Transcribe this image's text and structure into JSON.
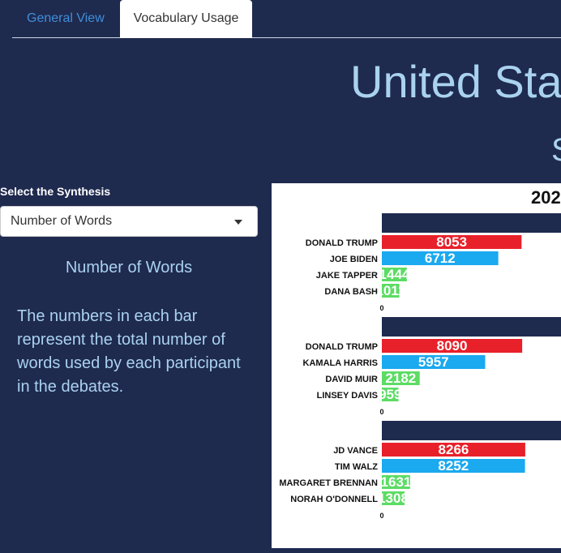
{
  "tabs": [
    {
      "label": "General View",
      "active": false
    },
    {
      "label": "Vocabulary Usage",
      "active": true
    }
  ],
  "page": {
    "title": "United Sta",
    "subtitle": "S"
  },
  "sidebar": {
    "select_label": "Select the Synthesis",
    "select_value": "Number of Words",
    "heading": "Number of Words",
    "description": "The numbers in each bar represent the total number of words used by each participant in the debates."
  },
  "colors": {
    "background": "#1f2a4f",
    "accent_text": "#a9d2ee",
    "tab_link": "#3f8fd8",
    "bar_red": "#e8202a",
    "bar_blue": "#1ba9ef",
    "bar_green": "#5cdc64",
    "panel_header": "#1f2a4f"
  },
  "chart_data": {
    "type": "bar",
    "orientation": "horizontal",
    "title": "202",
    "axis_zero_label": "0",
    "panels": [
      {
        "categories": [
          "DONALD TRUMP",
          "JOE BIDEN",
          "JAKE TAPPER",
          "DANA BASH"
        ],
        "values": [
          8053,
          6712,
          1444,
          1011
        ],
        "colors": [
          "red",
          "blue",
          "green",
          "green"
        ]
      },
      {
        "categories": [
          "DONALD TRUMP",
          "KAMALA HARRIS",
          "DAVID MUIR",
          "LINSEY DAVIS"
        ],
        "values": [
          8090,
          5957,
          2182,
          959
        ],
        "colors": [
          "red",
          "blue",
          "green",
          "green"
        ]
      },
      {
        "categories": [
          "JD VANCE",
          "TIM WALZ",
          "MARGARET BRENNAN",
          "NORAH O'DONNELL"
        ],
        "values": [
          8266,
          8252,
          1631,
          1308
        ],
        "colors": [
          "red",
          "blue",
          "green",
          "green"
        ]
      }
    ]
  }
}
